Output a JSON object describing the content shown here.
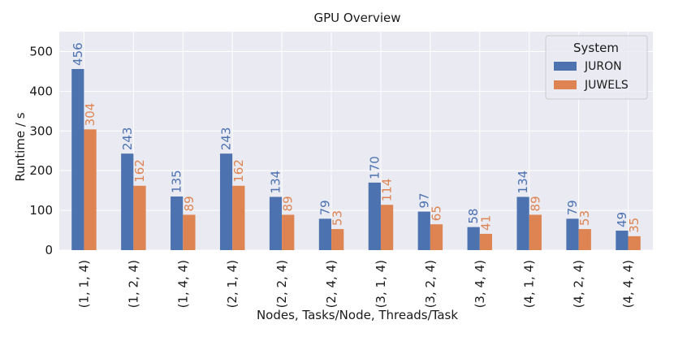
{
  "colors": {
    "plot_background": "#eaeaf2",
    "grid": "#ffffff",
    "text": "#1a1a1a",
    "series": [
      "#4c72b0",
      "#dd8452"
    ]
  },
  "chart_data": {
    "type": "bar",
    "title": "GPU Overview",
    "xlabel": "Nodes, Tasks/Node, Threads/Task",
    "ylabel": "Runtime / s",
    "ylim": [
      0,
      550
    ],
    "yticks": [
      0,
      100,
      200,
      300,
      400,
      500
    ],
    "grid": true,
    "categories": [
      "(1, 1, 4)",
      "(1, 2, 4)",
      "(1, 4, 4)",
      "(2, 1, 4)",
      "(2, 2, 4)",
      "(2, 4, 4)",
      "(3, 1, 4)",
      "(3, 2, 4)",
      "(3, 4, 4)",
      "(4, 1, 4)",
      "(4, 2, 4)",
      "(4, 4, 4)"
    ],
    "series": [
      {
        "name": "JURON",
        "values": [
          456,
          243,
          135,
          243,
          134,
          79,
          170,
          97,
          58,
          134,
          79,
          49
        ]
      },
      {
        "name": "JUWELS",
        "values": [
          304,
          162,
          89,
          162,
          89,
          53,
          114,
          65,
          41,
          89,
          53,
          35
        ]
      }
    ],
    "legend": {
      "title": "System",
      "position": "top-right"
    }
  }
}
